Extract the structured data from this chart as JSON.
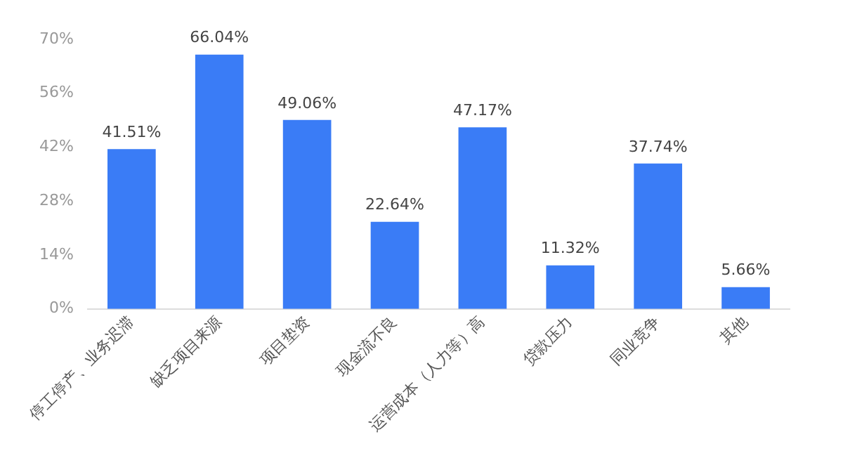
{
  "chart_data": {
    "type": "bar",
    "categories": [
      "停工停产、业务迟滞",
      "缺乏项目来源",
      "项目垫资",
      "现金流不良",
      "运营成本（人力等）高",
      "贷款压力",
      "同业竞争",
      "其他"
    ],
    "values": [
      41.51,
      66.04,
      49.06,
      22.64,
      47.17,
      11.32,
      37.74,
      5.66
    ],
    "value_labels": [
      "41.51%",
      "66.04%",
      "49.06%",
      "22.64%",
      "47.17%",
      "11.32%",
      "37.74%",
      "5.66%"
    ],
    "color": "#3a7cf6",
    "ylim": [
      0,
      70
    ],
    "yticks": [
      {
        "value": 0,
        "label": "0%"
      },
      {
        "value": 14,
        "label": "14%"
      },
      {
        "value": 28,
        "label": "28%"
      },
      {
        "value": 42,
        "label": "42%"
      },
      {
        "value": 56,
        "label": "56%"
      },
      {
        "value": 70,
        "label": "70%"
      }
    ],
    "grid": false,
    "legend": false
  }
}
